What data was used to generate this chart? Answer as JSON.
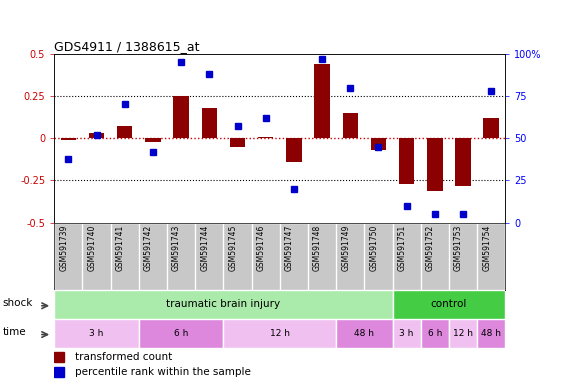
{
  "title": "GDS4911 / 1388615_at",
  "samples": [
    "GSM591739",
    "GSM591740",
    "GSM591741",
    "GSM591742",
    "GSM591743",
    "GSM591744",
    "GSM591745",
    "GSM591746",
    "GSM591747",
    "GSM591748",
    "GSM591749",
    "GSM591750",
    "GSM591751",
    "GSM591752",
    "GSM591753",
    "GSM591754"
  ],
  "bar_values": [
    -0.01,
    0.03,
    0.07,
    -0.02,
    0.25,
    0.18,
    -0.05,
    0.01,
    -0.14,
    0.44,
    0.15,
    -0.07,
    -0.27,
    -0.31,
    -0.28,
    0.12
  ],
  "dot_values": [
    38,
    52,
    70,
    42,
    95,
    88,
    57,
    62,
    20,
    97,
    80,
    45,
    10,
    5,
    5,
    78
  ],
  "ylim_left": [
    -0.5,
    0.5
  ],
  "ylim_right": [
    0,
    100
  ],
  "yticks_left": [
    -0.5,
    -0.25,
    0.0,
    0.25,
    0.5
  ],
  "yticks_right": [
    0,
    25,
    50,
    75,
    100
  ],
  "bar_color": "#8B0000",
  "dot_color": "#0000CC",
  "hline_color": "#CC0000",
  "shock_groups": [
    {
      "label": "traumatic brain injury",
      "start": 0,
      "end": 12,
      "color": "#AAEAAA"
    },
    {
      "label": "control",
      "start": 12,
      "end": 16,
      "color": "#44CC44"
    }
  ],
  "time_groups": [
    {
      "label": "3 h",
      "start": 0,
      "end": 3,
      "color": "#F0C0F0"
    },
    {
      "label": "6 h",
      "start": 3,
      "end": 6,
      "color": "#DD88DD"
    },
    {
      "label": "12 h",
      "start": 6,
      "end": 10,
      "color": "#F0C0F0"
    },
    {
      "label": "48 h",
      "start": 10,
      "end": 12,
      "color": "#DD88DD"
    },
    {
      "label": "3 h",
      "start": 12,
      "end": 13,
      "color": "#F0C0F0"
    },
    {
      "label": "6 h",
      "start": 13,
      "end": 14,
      "color": "#DD88DD"
    },
    {
      "label": "12 h",
      "start": 14,
      "end": 15,
      "color": "#F0C0F0"
    },
    {
      "label": "48 h",
      "start": 15,
      "end": 16,
      "color": "#DD88DD"
    }
  ],
  "shock_label": "shock",
  "time_label": "time",
  "legend_bar_label": "transformed count",
  "legend_dot_label": "percentile rank within the sample"
}
